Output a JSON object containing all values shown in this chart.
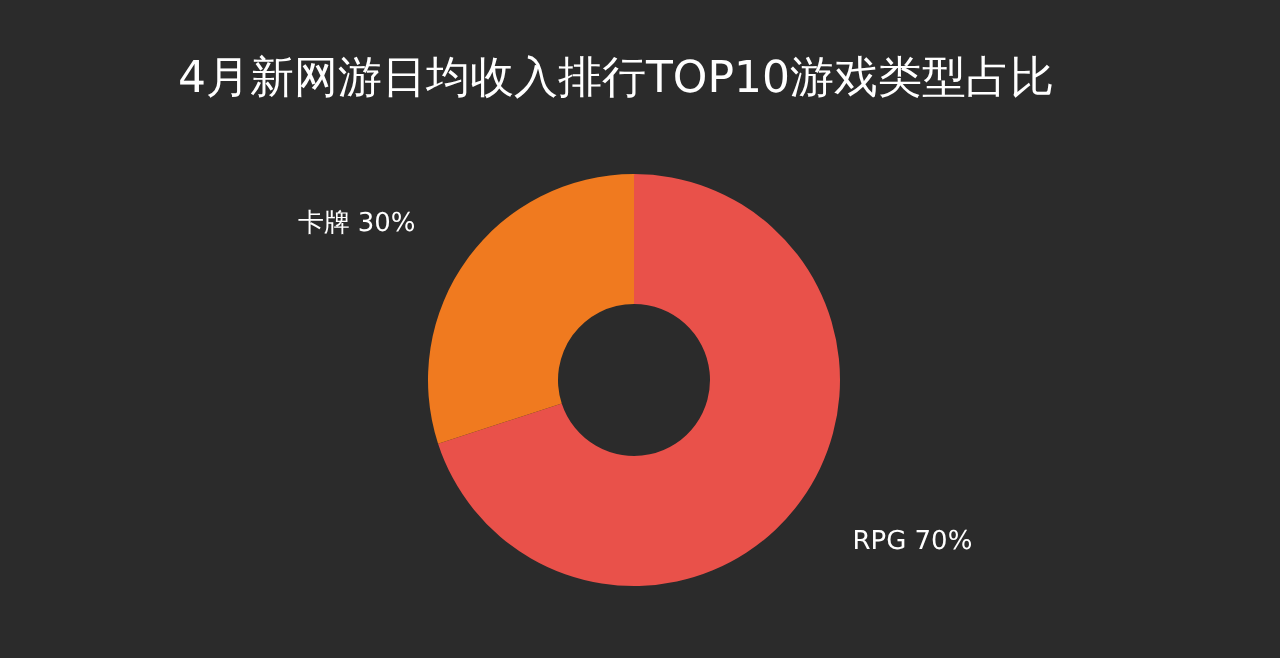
{
  "chart_data": {
    "type": "donut",
    "title": "4月新网游日均收入排行TOP10游戏类型占比",
    "categories": [
      "RPG",
      "卡牌"
    ],
    "values": [
      70,
      30
    ],
    "colors": [
      "#e9514a",
      "#f07a1f"
    ],
    "value_labels": [
      "70%",
      "30%"
    ]
  }
}
